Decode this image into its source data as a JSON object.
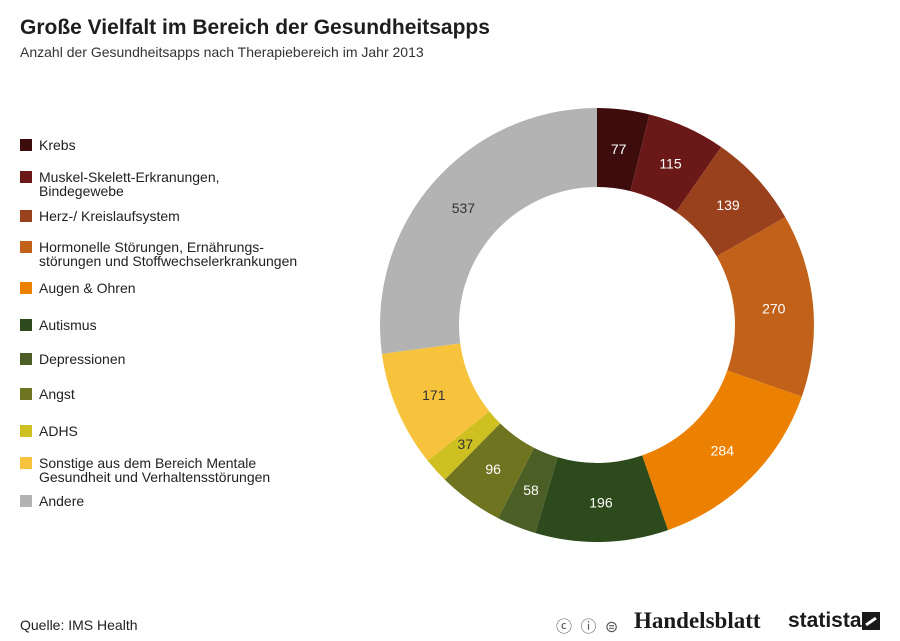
{
  "chart_data": {
    "type": "pie",
    "title": "Große Vielfalt im Bereich der Gesundheitsapps",
    "subtitle": "Anzahl der Gesundheitsapps nach Therapiebereich im Jahr 2013",
    "slices": [
      {
        "label": "Krebs",
        "value": 77,
        "color": "#3d0c0c",
        "text_color": "#ffffff"
      },
      {
        "label": "Muskel-Skelett-Erkranungen, Bindegewebe",
        "value": 115,
        "color": "#6a1818",
        "text_color": "#ffffff"
      },
      {
        "label": "Herz-/ Kreislaufsystem",
        "value": 139,
        "color": "#99401d",
        "text_color": "#ffffff"
      },
      {
        "label": "Hormonelle Störungen, Ernährungs-störungen und Stoffwechselerkrankungen",
        "value": 270,
        "color": "#c2621a",
        "text_color": "#ffffff"
      },
      {
        "label": "Augen & Ohren",
        "value": 284,
        "color": "#ec8000",
        "text_color": "#ffffff"
      },
      {
        "label": "Autismus",
        "value": 196,
        "color": "#2d4a1c",
        "text_color": "#ffffff"
      },
      {
        "label": "Depressionen",
        "value": 58,
        "color": "#4b5e25",
        "text_color": "#ffffff"
      },
      {
        "label": "Angst",
        "value": 96,
        "color": "#6f7420",
        "text_color": "#ffffff"
      },
      {
        "label": "ADHS",
        "value": 37,
        "color": "#cfc022",
        "text_color": "#333333"
      },
      {
        "label": "Sonstige aus dem Bereich Mentale Gesundheit und Verhaltensstörungen",
        "value": 171,
        "color": "#f7c33d",
        "text_color": "#333333"
      },
      {
        "label": "Andere",
        "value": 537,
        "color": "#b3b3b3",
        "text_color": "#333333"
      }
    ],
    "legend_position": "left"
  },
  "legend": [
    {
      "lines": [
        "Krebs"
      ],
      "color": "#3d0c0c"
    },
    {
      "lines": [
        "Muskel-Skelett-Erkranungen,",
        "Bindegewebe"
      ],
      "color": "#6a1818"
    },
    {
      "lines": [
        "Herz-/ Kreislaufsystem"
      ],
      "color": "#99401d"
    },
    {
      "lines": [
        "Hormonelle Störungen, Ernährungs-",
        "störungen und Stoffwechselerkrankungen"
      ],
      "color": "#c2621a"
    },
    {
      "lines": [
        "Augen & Ohren"
      ],
      "color": "#ec8000"
    },
    {
      "lines": [
        "Autismus"
      ],
      "color": "#2d4a1c"
    },
    {
      "lines": [
        "Depressionen"
      ],
      "color": "#4b5e25"
    },
    {
      "lines": [
        "Angst"
      ],
      "color": "#6f7420"
    },
    {
      "lines": [
        "ADHS"
      ],
      "color": "#cfc022"
    },
    {
      "lines": [
        "Sonstige aus dem Bereich Mentale",
        "Gesundheit und Verhaltensstörungen"
      ],
      "color": "#f7c33d"
    },
    {
      "lines": [
        "Andere"
      ],
      "color": "#b3b3b3"
    }
  ],
  "footer": {
    "source": "Quelle: IMS Health",
    "cc_icons": "ⓒ ⓘ ⊜",
    "brand_handelsblatt": "Handelsblatt",
    "brand_statista": "statista"
  }
}
